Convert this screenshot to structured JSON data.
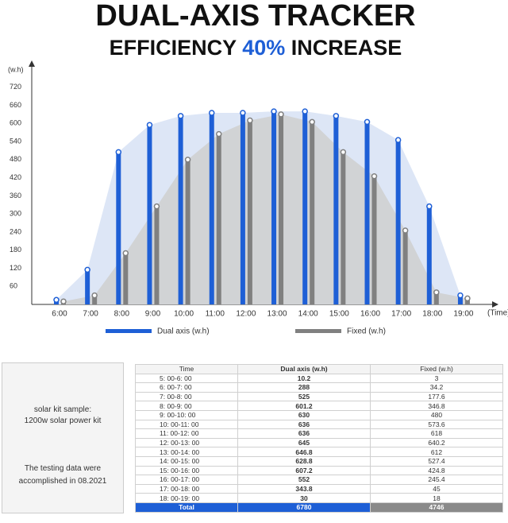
{
  "chart_data": {
    "type": "bar",
    "title": "DUAL-AXIS TRACKER",
    "subtitle_parts": [
      "EFFICIENCY",
      "40%",
      "INCREASE"
    ],
    "y_label": "(w.h)",
    "x_label": "(Time)",
    "categories": [
      "6:00",
      "7:00",
      "8:00",
      "9:00",
      "10:00",
      "11:00",
      "12:00",
      "13:00",
      "14:00",
      "15:00",
      "16:00",
      "17:00",
      "18:00",
      "19:00"
    ],
    "series": [
      {
        "name": "Dual axis (w.h)",
        "color": "#1e5fd6",
        "area_color": "#dde6f6",
        "values": [
          15,
          115,
          505,
          595,
          625,
          635,
          635,
          640,
          640,
          625,
          605,
          545,
          325,
          30
        ]
      },
      {
        "name": "Fixed (w.h)",
        "color": "#808080",
        "area_color": "#cfcfcf",
        "values": [
          10,
          30,
          170,
          325,
          480,
          565,
          610,
          630,
          605,
          505,
          425,
          245,
          40,
          20
        ]
      }
    ],
    "ylim": [
      0,
      780
    ],
    "yticks": [
      60,
      120,
      180,
      240,
      300,
      360,
      420,
      480,
      540,
      600,
      660,
      720
    ]
  },
  "notes": [
    "solar kit sample:",
    "1200w solar power kit",
    "The testing data were",
    "accomplished in 08.2021"
  ],
  "table": {
    "header": [
      "Time",
      "Dual axis (w.h)",
      "Fixed (w.h)"
    ],
    "rows": [
      [
        "5: 00-6: 00",
        10.2,
        3
      ],
      [
        "6: 00-7: 00",
        288,
        34.2
      ],
      [
        "7: 00-8: 00",
        525,
        177.6
      ],
      [
        "8: 00-9: 00",
        601.2,
        346.8
      ],
      [
        "9: 00-10: 00",
        630,
        480
      ],
      [
        "10: 00-11: 00",
        636,
        573.6
      ],
      [
        "11: 00-12: 00",
        636,
        618
      ],
      [
        "12: 00-13: 00",
        645,
        640.2
      ],
      [
        "13: 00-14: 00",
        646.8,
        612
      ],
      [
        "14: 00-15: 00",
        628.8,
        527.4
      ],
      [
        "15: 00-16: 00",
        607.2,
        424.8
      ],
      [
        "16: 00-17: 00",
        552,
        245.4
      ],
      [
        "17: 00-18: 00",
        343.8,
        45
      ],
      [
        "18: 00-19: 00",
        30,
        18
      ]
    ],
    "total": [
      "Total",
      6780,
      4746
    ]
  }
}
